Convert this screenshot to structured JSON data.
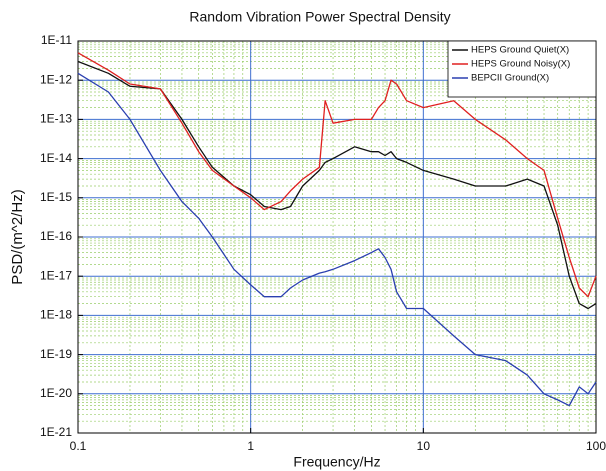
{
  "chart_data": {
    "type": "line",
    "title": "Random Vibration Power Spectral Density",
    "x_label": "Frequency/Hz",
    "y_label": "PSD/(m^2/Hz)",
    "x_log": true,
    "y_log": true,
    "grid": true,
    "legend": "top-right",
    "xlim": [
      0.1,
      100
    ],
    "ylim": [
      1e-21,
      1e-11
    ],
    "xticks": [
      0.1,
      1,
      10,
      100
    ],
    "yticks": [
      {
        "value": 1e-11,
        "label": "1E-11"
      },
      {
        "value": 1e-12,
        "label": "1E-12"
      },
      {
        "value": 1e-13,
        "label": "1E-13"
      },
      {
        "value": 1e-14,
        "label": "1E-14"
      },
      {
        "value": 1e-15,
        "label": "1E-15"
      },
      {
        "value": 1e-16,
        "label": "1E-16"
      },
      {
        "value": 1e-17,
        "label": "1E-17"
      },
      {
        "value": 1e-18,
        "label": "1E-18"
      },
      {
        "value": 1e-19,
        "label": "1E-19"
      },
      {
        "value": 1e-20,
        "label": "1E-20"
      },
      {
        "value": 1e-21,
        "label": "1E-21"
      }
    ],
    "x": [
      0.1,
      0.15,
      0.2,
      0.3,
      0.4,
      0.5,
      0.6,
      0.8,
      1,
      1.2,
      1.5,
      1.7,
      2,
      2.5,
      2.7,
      3,
      4,
      5,
      5.5,
      6,
      6.5,
      7,
      8,
      10,
      15,
      20,
      30,
      40,
      50,
      60,
      70,
      80,
      90,
      100
    ],
    "series": [
      {
        "name": "HEPS Ground Quiet(X)",
        "color": "#111111",
        "values": [
          3e-12,
          1.5e-12,
          7e-13,
          6e-13,
          1e-13,
          2e-14,
          6e-15,
          2e-15,
          1.2e-15,
          6e-16,
          5e-16,
          6e-16,
          2e-15,
          5e-15,
          8e-15,
          1e-14,
          2e-14,
          1.5e-14,
          1.5e-14,
          1.2e-14,
          1.5e-14,
          1e-14,
          8e-15,
          5e-15,
          3e-15,
          2e-15,
          2e-15,
          3e-15,
          2e-15,
          2e-16,
          1e-17,
          2e-18,
          1.5e-18,
          2e-18
        ]
      },
      {
        "name": "HEPS Ground Noisy(X)",
        "color": "#e02020",
        "values": [
          5e-12,
          1.8e-12,
          8e-13,
          6e-13,
          8e-14,
          1.5e-14,
          5e-15,
          2e-15,
          1e-15,
          5e-16,
          8e-16,
          1.5e-15,
          3e-15,
          6e-15,
          3e-13,
          8e-14,
          1e-13,
          1e-13,
          2e-13,
          3e-13,
          1e-12,
          8e-13,
          3e-13,
          2e-13,
          3e-13,
          1e-13,
          3e-14,
          1e-14,
          5e-15,
          3e-16,
          3e-17,
          5e-18,
          3e-18,
          1e-17
        ]
      },
      {
        "name": "BEPCII Ground(X)",
        "color": "#2a3fb0",
        "values": [
          1.5e-12,
          5e-13,
          1e-13,
          5e-15,
          8e-16,
          3e-16,
          1e-16,
          1.5e-17,
          6e-18,
          3e-18,
          3e-18,
          5e-18,
          8e-18,
          1.2e-17,
          1.3e-17,
          1.5e-17,
          2.5e-17,
          4e-17,
          5e-17,
          3e-17,
          1.5e-17,
          4e-18,
          1.5e-18,
          1.5e-18,
          3e-19,
          1e-19,
          7e-20,
          3e-20,
          1e-20,
          7e-21,
          5e-21,
          1.5e-20,
          1e-20,
          2e-20
        ]
      }
    ]
  }
}
